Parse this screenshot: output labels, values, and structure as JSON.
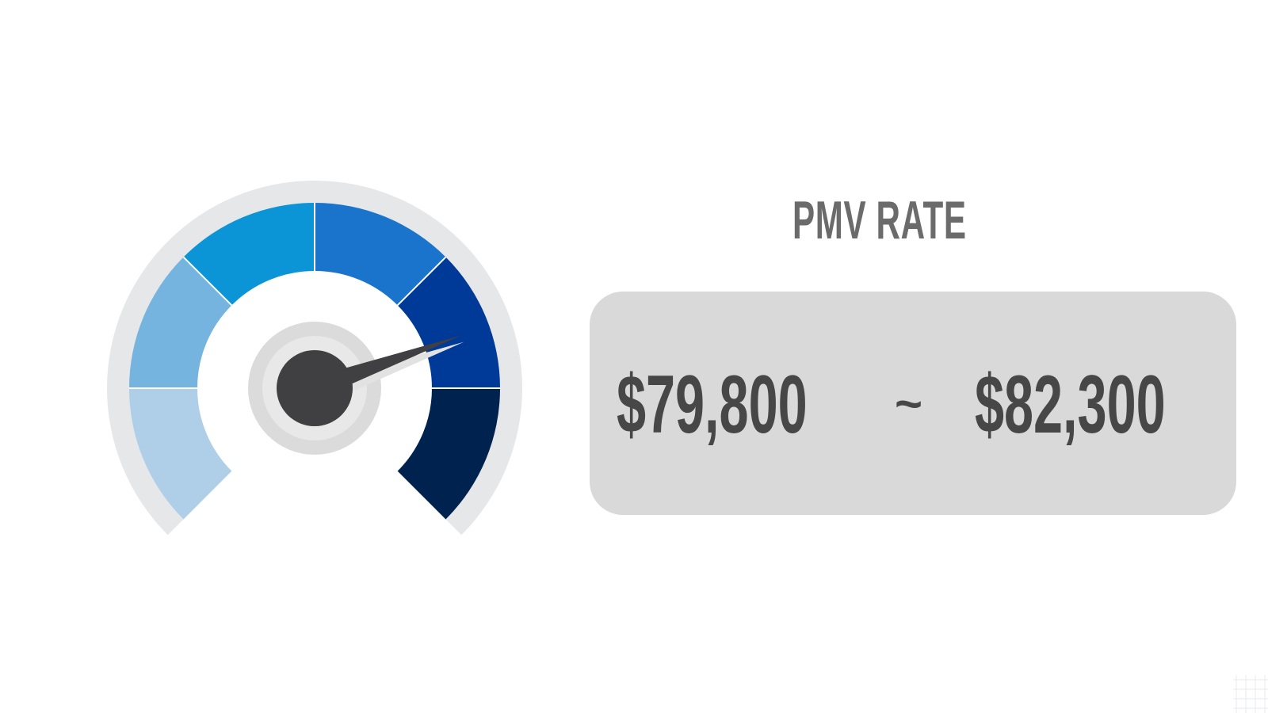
{
  "heading": {
    "title": "PMV RATE"
  },
  "price_range": {
    "low": "$79,800",
    "separator": "~",
    "high": "$82,300"
  },
  "gauge": {
    "level": 0.76,
    "segment_colors": [
      "#aecfe7",
      "#76b4e0",
      "#0b95d6",
      "#1b74cc",
      "#003a98",
      "#00224e"
    ],
    "track_color": "#e6e7e9",
    "hub_color": "#404042",
    "needle_color": "#404042"
  }
}
